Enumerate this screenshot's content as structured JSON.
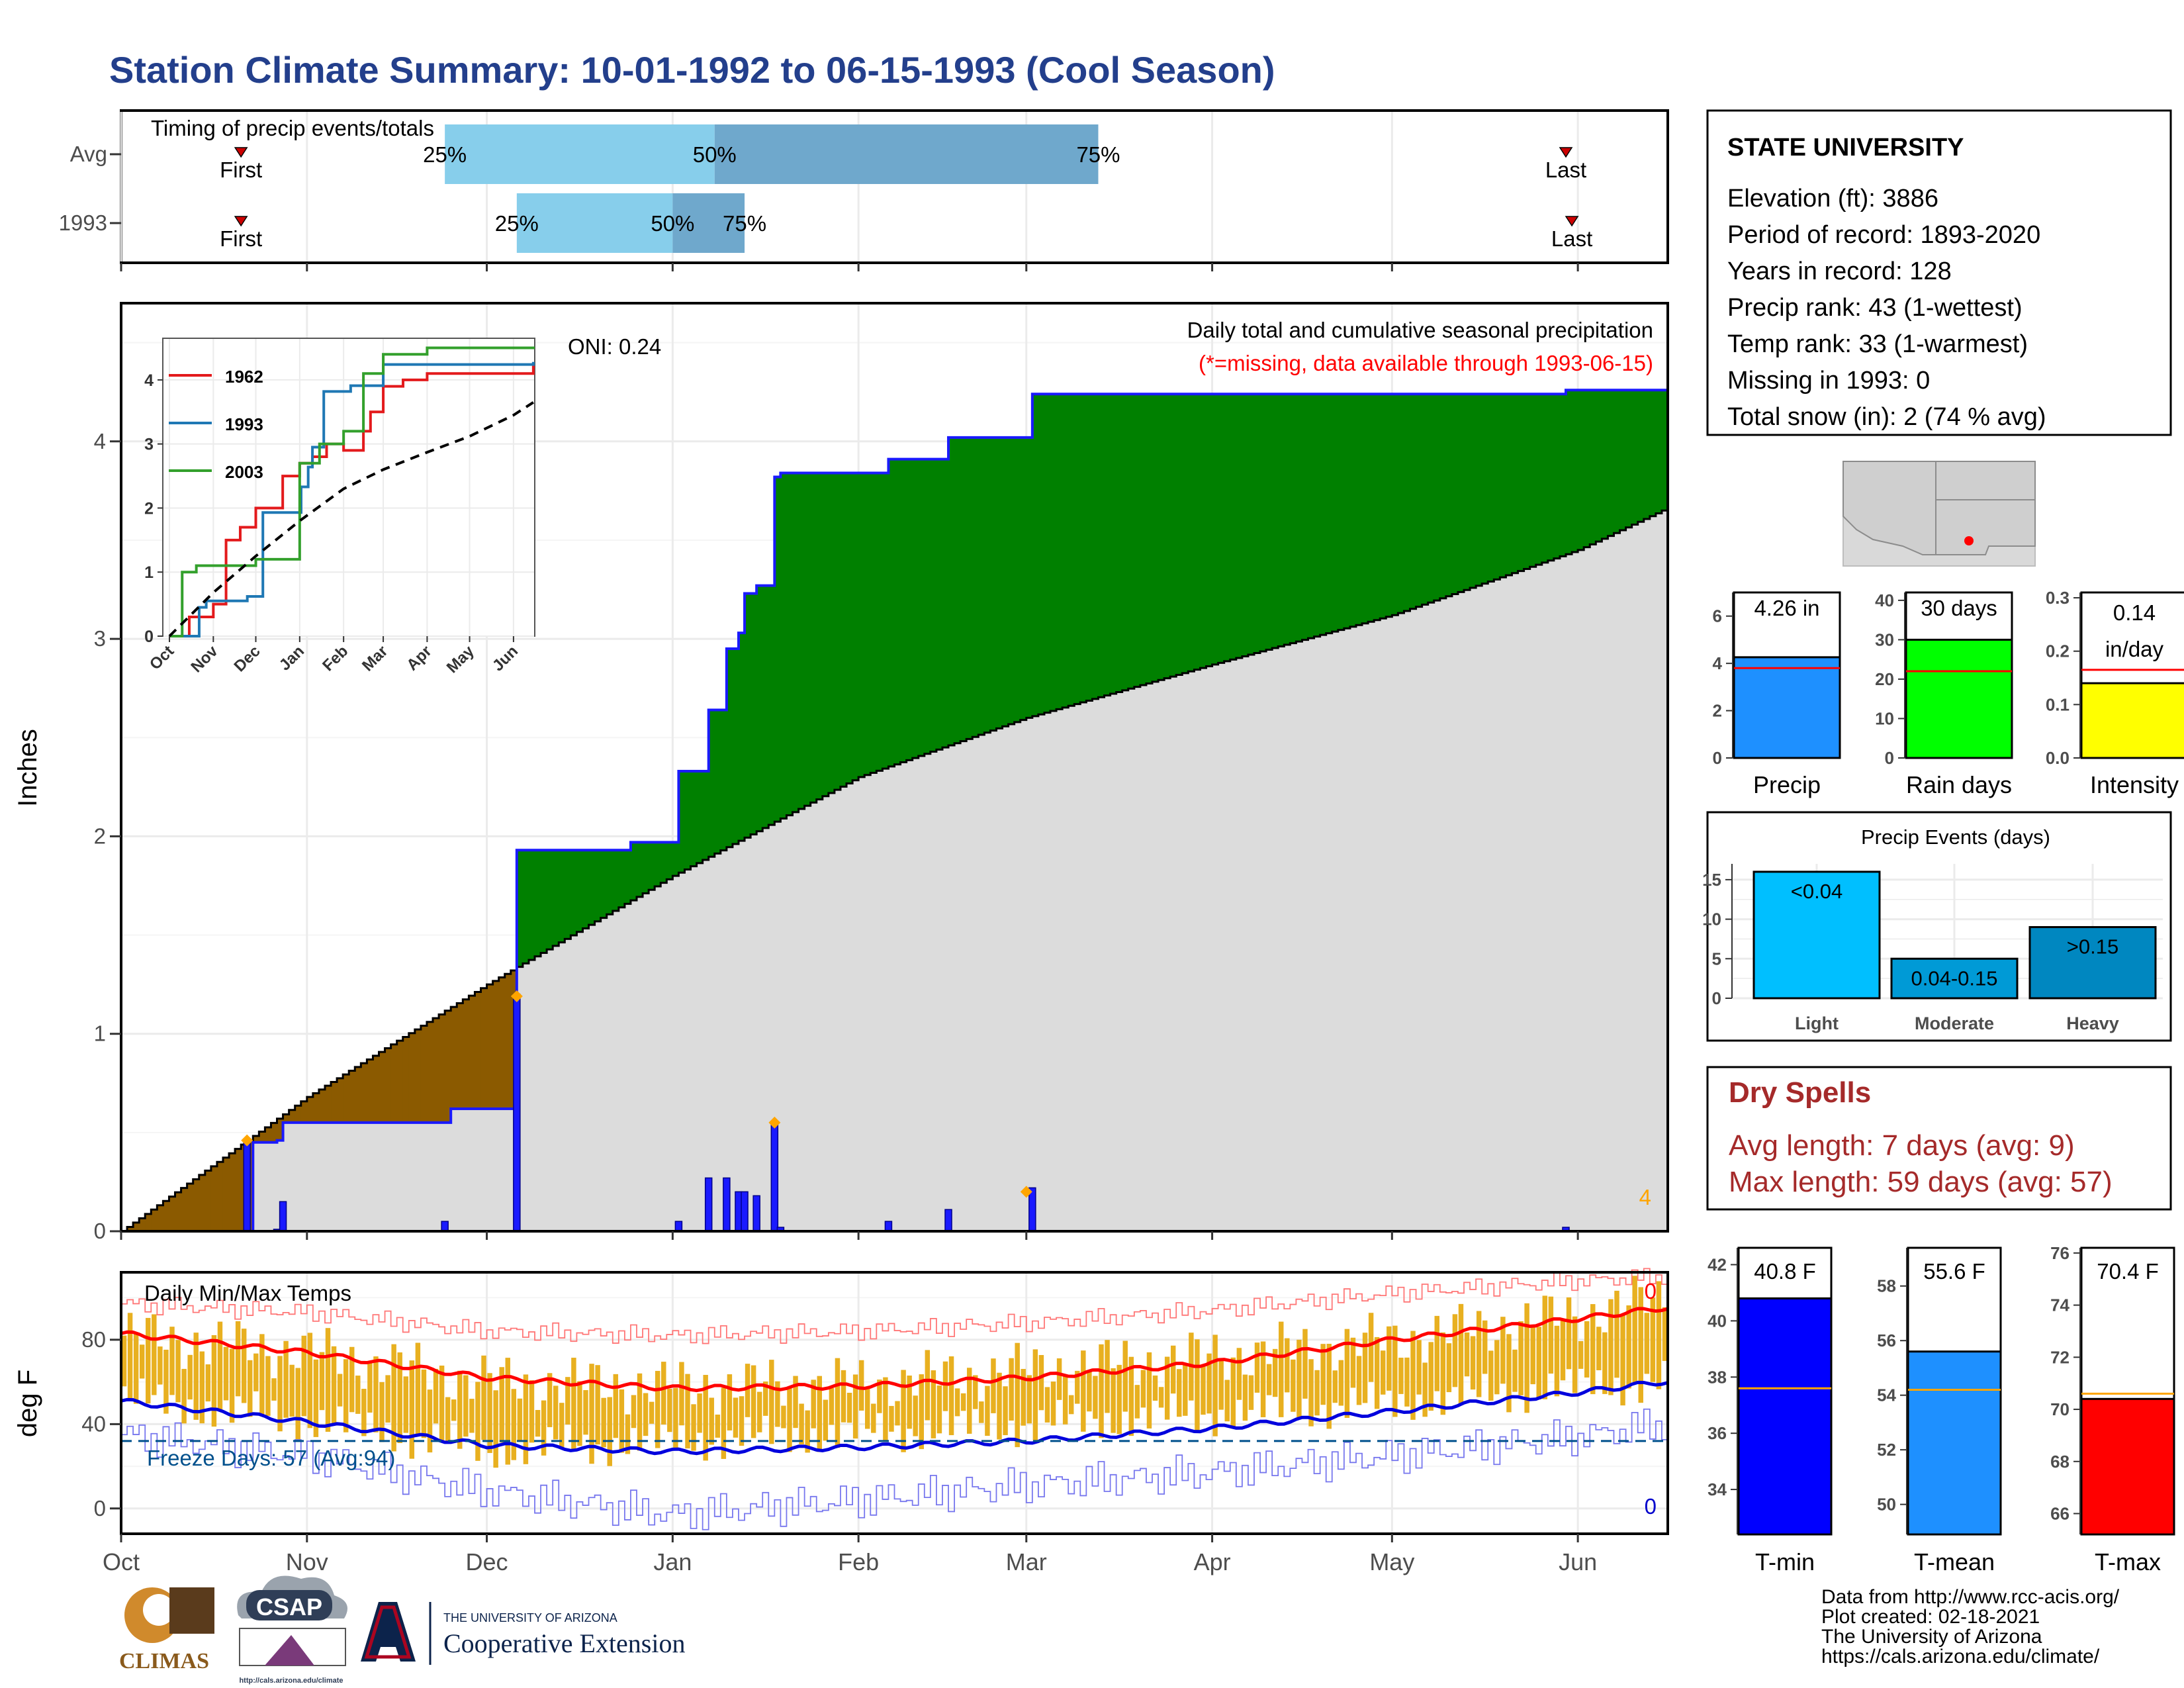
{
  "page": {
    "title": "Station Climate Summary: 10-01-1992 to 06-15-1993 (Cool Season)",
    "title_color": "#233f8c"
  },
  "timing_panel": {
    "label": "Timing of precip events/totals",
    "rows": [
      {
        "name": "Avg",
        "first_label": "First",
        "last_label": "Last",
        "p25": "25%",
        "p50": "50%",
        "p75": "75%",
        "first_date": "1992-10-21",
        "q25_date": "1992-11-24",
        "q50_date": "1993-01-08",
        "q75_date": "1993-03-13",
        "last_date": "1993-05-30"
      },
      {
        "name": "1993",
        "first_label": "First",
        "last_label": "Last",
        "p25": "25%",
        "p50": "50%",
        "p75": "75%",
        "first_date": "1992-10-21",
        "q25_date": "1992-12-06",
        "q50_date": "1993-01-01",
        "q75_date": "1993-01-13",
        "last_date": "1993-05-31"
      }
    ]
  },
  "info_box": {
    "station": "STATE UNIVERSITY",
    "lines": [
      "Elevation (ft): 3886",
      "Period of record: 1893-2020",
      "Years in record: 128",
      "Precip rank: 43 (1-wettest)",
      "Temp rank: 33 (1-warmest)",
      "Missing in 1993: 0",
      "Total snow (in): 2 (74 % avg)"
    ]
  },
  "precip_panel": {
    "ylabel": "Inches",
    "header": "Daily total and cumulative seasonal precipitation",
    "missing_note": "(*=missing, data available through 1993-06-15)",
    "oni": "ONI: 0.24",
    "corner_count": "4",
    "x_ticks": [
      "Oct",
      "Nov",
      "Dec",
      "Jan",
      "Feb",
      "Mar",
      "Apr",
      "May",
      "Jun"
    ],
    "y_ticks": [
      "0",
      "1",
      "2",
      "3",
      "4"
    ]
  },
  "inset": {
    "legend": [
      {
        "name": "1962",
        "color": "#e31a1c"
      },
      {
        "name": "1993",
        "color": "#1f78b4"
      },
      {
        "name": "2003",
        "color": "#33a02c"
      }
    ],
    "x_ticks": [
      "Oct",
      "Nov",
      "Dec",
      "Jan",
      "Feb",
      "Mar",
      "Apr",
      "May",
      "Jun"
    ],
    "y_ticks": [
      "0",
      "1",
      "2",
      "3",
      "4"
    ]
  },
  "summary_bars": [
    {
      "label": "Precip",
      "value_text": "4.26 in",
      "ticks": [
        "0",
        "2",
        "4",
        "6"
      ]
    },
    {
      "label": "Rain days",
      "value_text": "30 days",
      "ticks": [
        "0",
        "10",
        "20",
        "30",
        "40"
      ]
    },
    {
      "label": "Intensity",
      "value_text": "0.14",
      "value_sub": "in/day",
      "ticks": [
        "0.0",
        "0.1",
        "0.2",
        "0.3"
      ]
    }
  ],
  "events": {
    "title": "Precip Events (days)",
    "ticks": [
      "0",
      "5",
      "10",
      "15"
    ]
  },
  "dry_spells": {
    "title": "Dry Spells",
    "avg": "Avg length: 7 days (avg: 9)",
    "max": "Max length: 59 days (avg: 57)",
    "color": "#a52a2a"
  },
  "temp_panel": {
    "label": "Daily Min/Max Temps",
    "ylabel": "deg F",
    "freeze": "Freeze Days: 57 (Avg:94)",
    "top_count": "0",
    "bottom_count": "0",
    "y_ticks": [
      "0",
      "40",
      "80"
    ]
  },
  "temp_bars": [
    {
      "label": "T-min",
      "value_text": "40.8 F",
      "ticks": [
        "34",
        "36",
        "38",
        "40",
        "42"
      ]
    },
    {
      "label": "T-mean",
      "value_text": "55.6 F",
      "ticks": [
        "50",
        "52",
        "54",
        "56",
        "58"
      ]
    },
    {
      "label": "T-max",
      "value_text": "70.4 F",
      "ticks": [
        "66",
        "68",
        "70",
        "72",
        "74",
        "76"
      ]
    }
  ],
  "footer": {
    "credits": [
      "Data from http://www.rcc-acis.org/",
      "Plot created: 02-18-2021",
      "The University of Arizona",
      "https://cals.arizona.edu/climate/"
    ],
    "logos": {
      "climas": "CLIMAS",
      "csap": "CSAP",
      "csap_url": "http://cals.arizona.edu/climate",
      "ua_small": "THE UNIVERSITY OF ARIZONA",
      "ua_big": "Cooperative Extension"
    }
  },
  "chart_data": [
    {
      "type": "area",
      "title": "Daily total and cumulative seasonal precipitation",
      "ylabel": "Inches",
      "ylim": [
        0,
        4.7
      ],
      "xlim": [
        "1992-10-01",
        "1993-06-15"
      ],
      "colors": {
        "above_avg": "#008000",
        "below_avg": "#8b5a00",
        "avg_fill": "#dcdcdc",
        "observed": "#1a1aff",
        "daily_bar": "#1a1aff"
      },
      "series": [
        {
          "name": "observed cumulative",
          "x": [
            "1992-10-01",
            "1992-10-22",
            "1992-10-23",
            "1992-10-27",
            "1992-10-28",
            "1992-11-24",
            "1992-11-25",
            "1992-12-05",
            "1992-12-06",
            "1992-12-24",
            "1992-12-25",
            "1993-01-01",
            "1993-01-02",
            "1993-01-06",
            "1993-01-07",
            "1993-01-09",
            "1993-01-10",
            "1993-01-11",
            "1993-01-12",
            "1993-01-13",
            "1993-01-15",
            "1993-01-17",
            "1993-01-18",
            "1993-01-19",
            "1993-02-02",
            "1993-02-06",
            "1993-02-15",
            "1993-02-16",
            "1993-03-01",
            "1993-03-02",
            "1993-05-01",
            "1993-05-30",
            "1993-06-15"
          ],
          "values": [
            0,
            0,
            0.45,
            0.46,
            0.55,
            0.55,
            0.62,
            0.62,
            1.93,
            1.93,
            1.97,
            1.97,
            2.33,
            2.33,
            2.64,
            2.64,
            2.95,
            2.95,
            3.03,
            3.23,
            3.27,
            3.27,
            3.82,
            3.84,
            3.84,
            3.91,
            3.91,
            4.02,
            4.02,
            4.24,
            4.24,
            4.26,
            4.26
          ]
        },
        {
          "name": "average cumulative",
          "x": [
            "1992-10-01",
            "1992-11-01",
            "1992-12-01",
            "1993-01-01",
            "1993-02-01",
            "1993-03-01",
            "1993-04-01",
            "1993-05-01",
            "1993-06-01",
            "1993-06-15"
          ],
          "values": [
            0,
            0.68,
            1.25,
            1.8,
            2.3,
            2.6,
            2.87,
            3.12,
            3.45,
            3.65
          ]
        }
      ],
      "daily_bars": {
        "x": [
          "1992-10-22",
          "1992-10-27",
          "1992-10-28",
          "1992-11-24",
          "1992-12-06",
          "1993-01-02",
          "1993-01-07",
          "1993-01-10",
          "1993-01-12",
          "1993-01-13",
          "1993-01-15",
          "1993-01-18",
          "1993-01-19",
          "1993-02-06",
          "1993-02-16",
          "1993-03-02",
          "1993-05-30"
        ],
        "values": [
          0.45,
          0.01,
          0.15,
          0.05,
          1.2,
          0.05,
          0.27,
          0.27,
          0.2,
          0.2,
          0.18,
          0.55,
          0.02,
          0.05,
          0.11,
          0.22,
          0.02
        ]
      },
      "daily_record_markers": {
        "x": [
          "1992-10-22",
          "1992-12-06",
          "1993-01-18",
          "1993-03-01"
        ],
        "values": [
          0.46,
          1.19,
          0.55,
          0.2
        ]
      }
    },
    {
      "type": "line",
      "title": "cumulative precipitation comparison",
      "ylim": [
        0,
        4.5
      ],
      "x_labels": [
        "Oct",
        "Nov",
        "Dec",
        "Jan",
        "Feb",
        "Mar",
        "Apr",
        "May",
        "Jun"
      ],
      "series": [
        {
          "name": "1962",
          "x": [
            "1992-10-01",
            "1992-10-15",
            "1992-11-01",
            "1992-11-10",
            "1992-11-20",
            "1992-12-01",
            "1992-12-20",
            "1993-01-01",
            "1993-01-10",
            "1993-01-20",
            "1993-02-01",
            "1993-02-15",
            "1993-02-20",
            "1993-03-01",
            "1993-03-15",
            "1993-04-01",
            "1993-05-01",
            "1993-06-15"
          ],
          "values": [
            0,
            0.3,
            0.5,
            1.5,
            1.7,
            2.0,
            2.5,
            2.7,
            2.8,
            3.0,
            2.9,
            3.2,
            3.5,
            3.9,
            4.0,
            4.1,
            4.1,
            4.2
          ]
        },
        {
          "name": "1993",
          "x": [
            "1992-10-01",
            "1992-10-22",
            "1992-10-27",
            "1992-11-25",
            "1992-12-06",
            "1993-01-02",
            "1993-01-07",
            "1993-01-10",
            "1993-01-18",
            "1993-02-06",
            "1993-03-01",
            "1993-06-15"
          ],
          "values": [
            0,
            0.45,
            0.55,
            0.62,
            1.93,
            2.33,
            2.64,
            2.95,
            3.82,
            3.91,
            4.24,
            4.26
          ]
        },
        {
          "name": "2003",
          "x": [
            "1992-10-01",
            "1992-10-10",
            "1992-10-20",
            "1992-11-15",
            "1992-12-01",
            "1993-01-01",
            "1993-01-15",
            "1993-02-01",
            "1993-02-15",
            "1993-03-01",
            "1993-04-01",
            "1993-06-15"
          ],
          "values": [
            0,
            1.0,
            1.1,
            1.1,
            1.2,
            2.7,
            3.0,
            3.2,
            4.1,
            4.4,
            4.5,
            4.5
          ]
        },
        {
          "name": "average",
          "x": [
            "1992-10-01",
            "1992-11-01",
            "1992-12-01",
            "1993-01-01",
            "1993-02-01",
            "1993-03-01",
            "1993-04-01",
            "1993-05-01",
            "1993-06-01",
            "1993-06-15"
          ],
          "values": [
            0,
            0.68,
            1.25,
            1.8,
            2.3,
            2.6,
            2.87,
            3.12,
            3.45,
            3.65
          ]
        }
      ]
    },
    {
      "type": "bar",
      "title": "Precip",
      "categories": [
        "Precip"
      ],
      "values": [
        4.26
      ],
      "avg": 3.8,
      "ylim": [
        0,
        7
      ],
      "color": "#1e90ff"
    },
    {
      "type": "bar",
      "title": "Rain days",
      "categories": [
        "Rain days"
      ],
      "values": [
        30
      ],
      "avg": 22,
      "ylim": [
        0,
        42
      ],
      "color": "#00ff00"
    },
    {
      "type": "bar",
      "title": "Intensity",
      "categories": [
        "Intensity"
      ],
      "values": [
        0.14
      ],
      "avg": 0.165,
      "ylim": [
        0,
        0.31
      ],
      "color": "#ffff00"
    },
    {
      "type": "bar",
      "title": "Precip Events (days)",
      "categories": [
        "Light",
        "Moderate",
        "Heavy"
      ],
      "labels": [
        "<0.04",
        "0.04-0.15",
        ">0.15"
      ],
      "values": [
        16,
        5,
        9
      ],
      "ylim": [
        0,
        17
      ],
      "colors": [
        "#00bfff",
        "#009ad6",
        "#0087c0"
      ]
    },
    {
      "type": "line",
      "title": "Daily Min/Max Temps",
      "ylabel": "deg F",
      "ylim": [
        -12,
        112
      ],
      "freeze_line": 32,
      "series": [
        {
          "name": "avg max",
          "x": [
            "1992-10-01",
            "1992-11-01",
            "1992-12-01",
            "1993-01-01",
            "1993-02-01",
            "1993-03-01",
            "1993-04-01",
            "1993-05-01",
            "1993-06-01",
            "1993-06-15"
          ],
          "values": [
            83,
            74,
            62,
            57,
            58,
            62,
            69,
            80,
            90,
            95
          ]
        },
        {
          "name": "avg min",
          "x": [
            "1992-10-01",
            "1992-11-01",
            "1992-12-01",
            "1993-01-01",
            "1993-02-01",
            "1993-03-01",
            "1993-04-01",
            "1993-05-01",
            "1993-06-01",
            "1993-06-15"
          ],
          "values": [
            51,
            41,
            30,
            27,
            29,
            32,
            38,
            46,
            55,
            60
          ]
        },
        {
          "name": "record max",
          "x": [
            "1992-10-01",
            "1992-11-01",
            "1992-12-01",
            "1993-01-01",
            "1993-02-01",
            "1993-03-01",
            "1993-04-01",
            "1993-05-01",
            "1993-06-01",
            "1993-06-15"
          ],
          "values": [
            97,
            93,
            84,
            82,
            84,
            88,
            94,
            102,
            108,
            110
          ]
        },
        {
          "name": "record min",
          "x": [
            "1992-10-01",
            "1992-11-01",
            "1992-12-01",
            "1993-01-01",
            "1993-02-01",
            "1993-03-01",
            "1993-04-01",
            "1993-05-01",
            "1993-06-01",
            "1993-06-15"
          ],
          "values": [
            35,
            25,
            8,
            -3,
            4,
            11,
            17,
            25,
            34,
            40
          ]
        },
        {
          "name": "observed max",
          "x": [
            "1992-10-01",
            "1992-11-01",
            "1992-12-01",
            "1993-01-01",
            "1993-02-01",
            "1993-03-01",
            "1993-04-01",
            "1993-05-01",
            "1993-06-01",
            "1993-06-15"
          ],
          "values": [
            82,
            74,
            60,
            58,
            59,
            66,
            72,
            80,
            92,
            100
          ]
        },
        {
          "name": "observed min",
          "x": [
            "1992-10-01",
            "1992-11-01",
            "1992-12-01",
            "1993-01-01",
            "1993-02-01",
            "1993-03-01",
            "1993-04-01",
            "1993-05-01",
            "1993-06-01",
            "1993-06-15"
          ],
          "values": [
            52,
            42,
            28,
            32,
            36,
            40,
            45,
            50,
            58,
            60
          ]
        }
      ]
    },
    {
      "type": "bar",
      "title": "T-min",
      "categories": [
        "T-min"
      ],
      "values": [
        40.8
      ],
      "avg": 37.6,
      "ylim": [
        32.4,
        42.6
      ],
      "color": "#0000ff"
    },
    {
      "type": "bar",
      "title": "T-mean",
      "categories": [
        "T-mean"
      ],
      "values": [
        55.6
      ],
      "avg": 54.2,
      "ylim": [
        48.9,
        59.4
      ],
      "color": "#1e90ff"
    },
    {
      "type": "bar",
      "title": "T-max",
      "categories": [
        "T-max"
      ],
      "values": [
        70.4
      ],
      "avg": 70.6,
      "ylim": [
        65.2,
        76.2
      ],
      "color": "#ff0000"
    }
  ]
}
